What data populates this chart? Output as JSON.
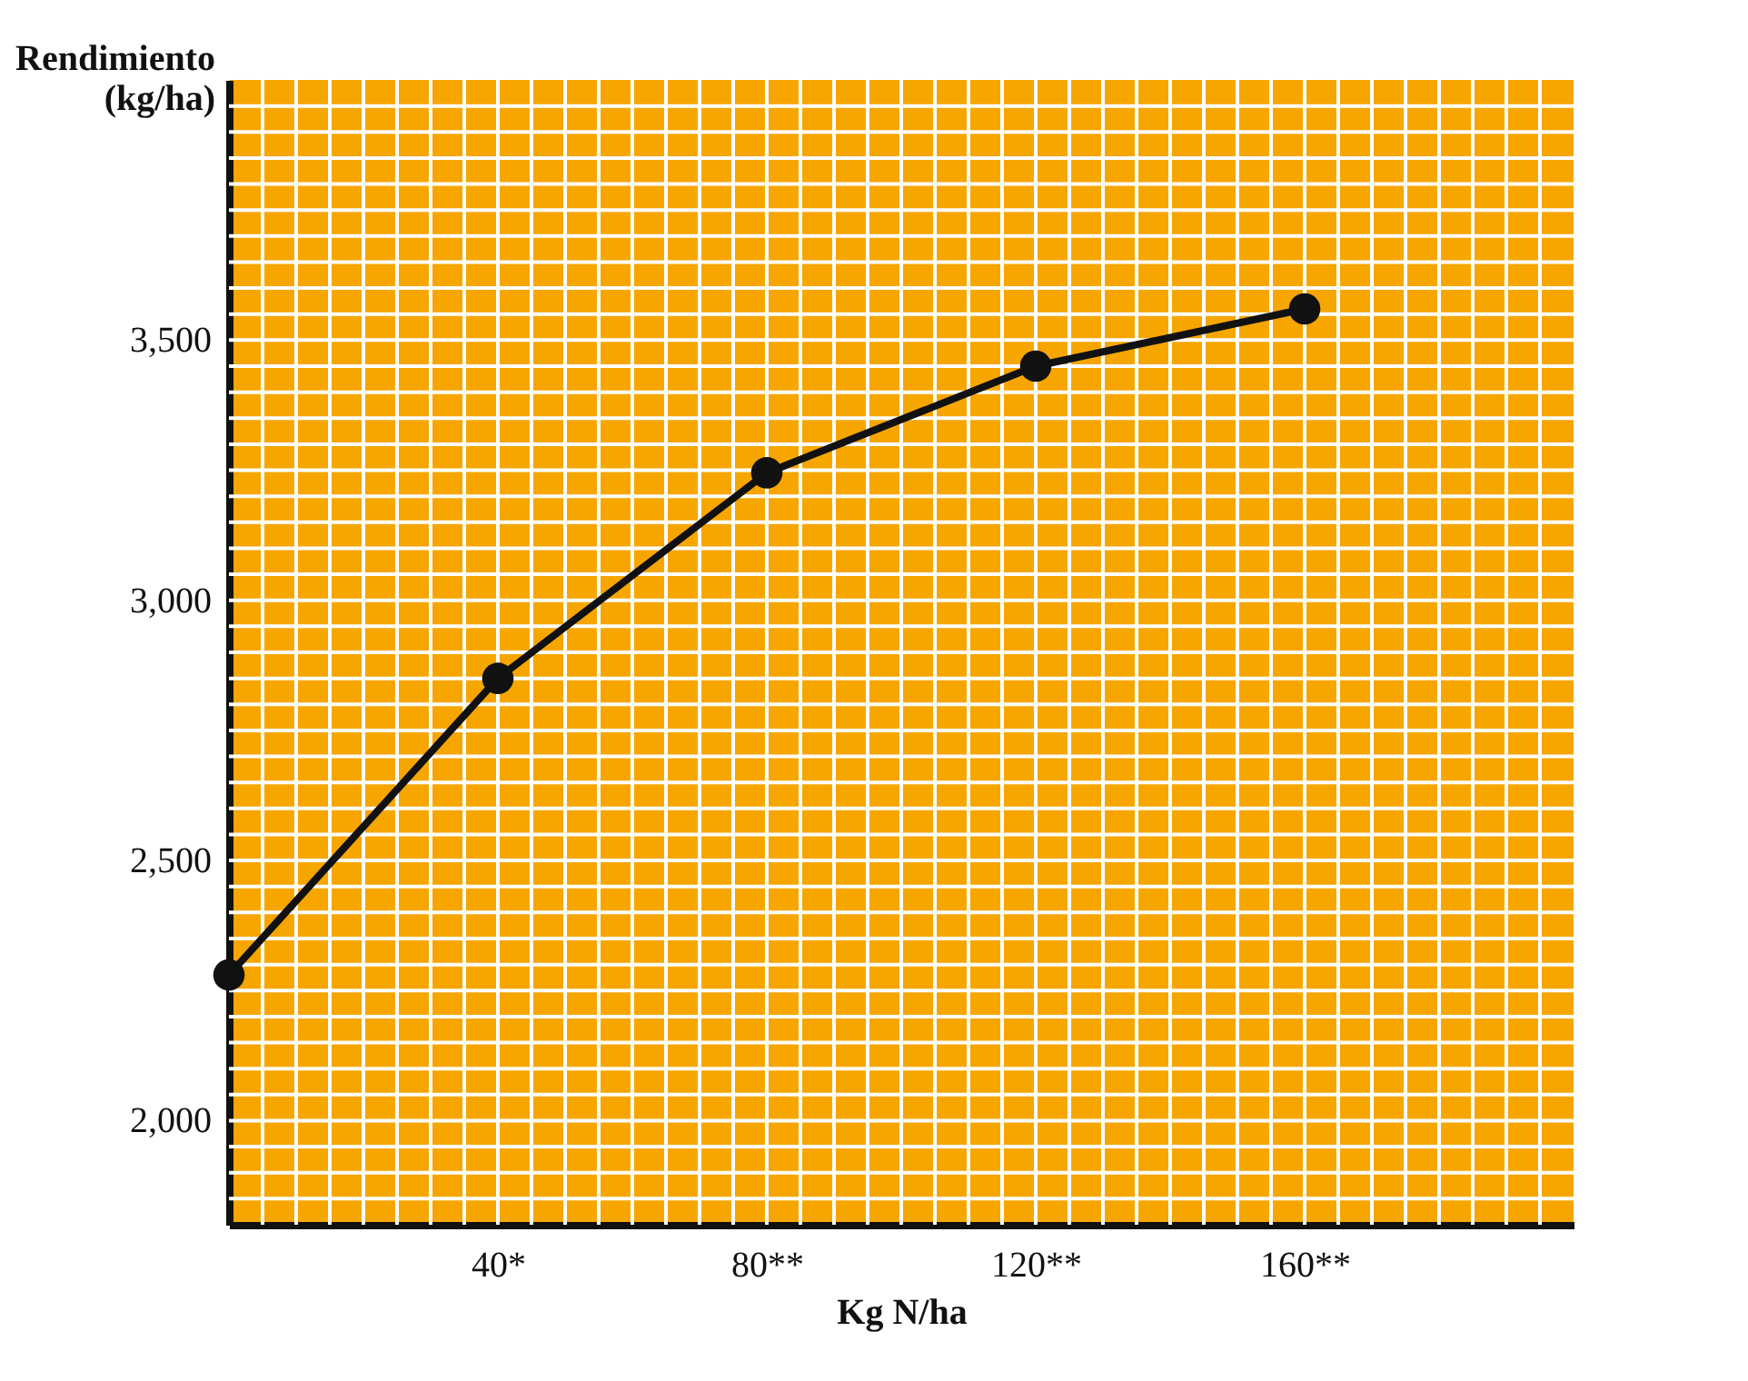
{
  "chart_data": {
    "type": "line",
    "xlabel": "Kg N/ha",
    "ylabel": "Rendimiento (kg/ha)",
    "x": [
      0,
      40,
      80,
      120,
      160
    ],
    "series": [
      {
        "color": "#111111",
        "values": [
          2280,
          2850,
          3245,
          3450,
          3560
        ]
      }
    ],
    "xlim": [
      0,
      200
    ],
    "ylim": [
      1800,
      4000
    ],
    "xticks": [
      {
        "value": 40,
        "label": "40*"
      },
      {
        "value": 80,
        "label": "80**"
      },
      {
        "value": 120,
        "label": "120**"
      },
      {
        "value": 160,
        "label": "160**"
      }
    ],
    "yticks": [
      {
        "value": 2000,
        "label": "2,000"
      },
      {
        "value": 2500,
        "label": "2,500"
      },
      {
        "value": 3000,
        "label": "3,000"
      },
      {
        "value": 3500,
        "label": "3,500"
      }
    ],
    "grid": true,
    "marker": "circle",
    "line_style": "solid"
  }
}
